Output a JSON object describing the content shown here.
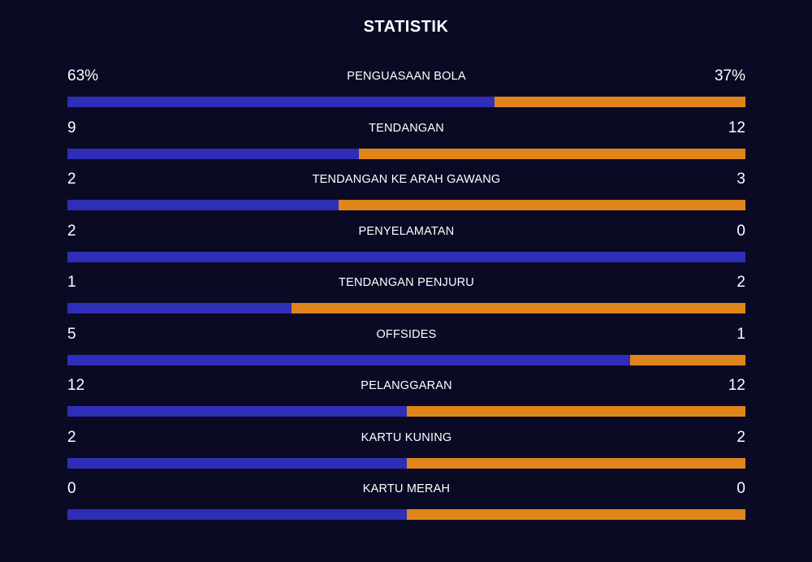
{
  "title": "STATISTIK",
  "colors": {
    "background": "#0b0a24",
    "home": "#2e2eb8",
    "away": "#e0851b",
    "text": "#ffffff"
  },
  "stats": [
    {
      "label": "PENGUASAAN BOLA",
      "home": "63%",
      "away": "37%",
      "home_share": 0.63
    },
    {
      "label": "TENDANGAN",
      "home": "9",
      "away": "12",
      "home_share": 0.43
    },
    {
      "label": "TENDANGAN KE ARAH GAWANG",
      "home": "2",
      "away": "3",
      "home_share": 0.4
    },
    {
      "label": "PENYELAMATAN",
      "home": "2",
      "away": "0",
      "home_share": 1.0
    },
    {
      "label": "TENDANGAN PENJURU",
      "home": "1",
      "away": "2",
      "home_share": 0.33
    },
    {
      "label": "OFFSIDES",
      "home": "5",
      "away": "1",
      "home_share": 0.83
    },
    {
      "label": "PELANGGARAN",
      "home": "12",
      "away": "12",
      "home_share": 0.5
    },
    {
      "label": "KARTU KUNING",
      "home": "2",
      "away": "2",
      "home_share": 0.5
    },
    {
      "label": "KARTU MERAH",
      "home": "0",
      "away": "0",
      "home_share": 0.5
    }
  ]
}
